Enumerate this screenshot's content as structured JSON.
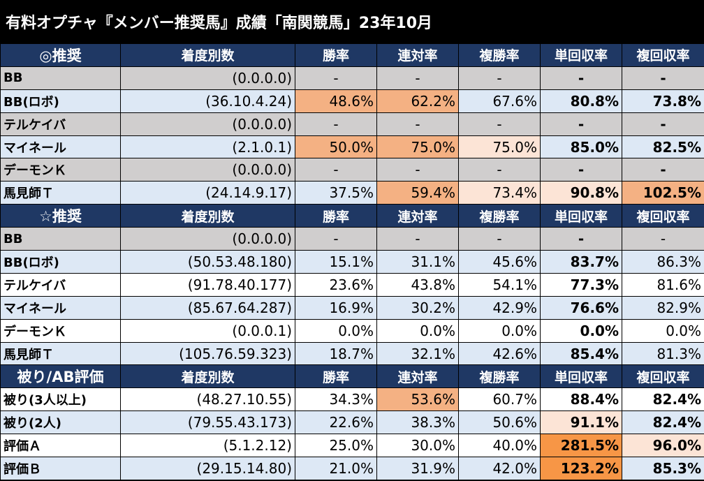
{
  "title": "有料オプチャ『メンバー推奨馬』成績「南関競馬」23年10月",
  "sections": [
    {
      "header": [
        "◎推奨",
        "着度別数",
        "勝率",
        "連対率",
        "複勝率",
        "単回収率",
        "複回収率"
      ],
      "rows": [
        {
          "name": "BB",
          "record": "(0.0.0.0)",
          "values": [
            "-",
            "-",
            "-",
            "-",
            "-"
          ],
          "style": "gray"
        },
        {
          "name": "BB(ロボ)",
          "record": "(36.10.4.24)",
          "values": [
            "48.6%",
            "62.2%",
            "67.6%",
            "80.8%",
            "73.8%"
          ],
          "style": "blue"
        },
        {
          "name": "テルケイバ",
          "record": "(0.0.0.0)",
          "values": [
            "-",
            "-",
            "-",
            "-",
            "-"
          ],
          "style": "gray"
        },
        {
          "name": "マイネール",
          "record": "(2.1.0.1)",
          "values": [
            "50.0%",
            "75.0%",
            "75.0%",
            "85.0%",
            "82.5%"
          ],
          "style": "blue"
        },
        {
          "name": "デーモンＫ",
          "record": "(0.0.0.0)",
          "values": [
            "-",
            "-",
            "-",
            "-",
            "-"
          ],
          "style": "gray"
        },
        {
          "name": "馬見師Ｔ",
          "record": "(24.14.9.17)",
          "values": [
            "37.5%",
            "59.4%",
            "73.4%",
            "90.8%",
            "102.5%"
          ],
          "style": "blue"
        }
      ]
    },
    {
      "header": [
        "☆推奨",
        "着度別数",
        "勝率",
        "連対率",
        "複勝率",
        "単回収率",
        "複回収率"
      ],
      "rows": [
        {
          "name": "BB",
          "record": "(0.0.0.0)",
          "values": [
            "-",
            "-",
            "-",
            "-",
            "-"
          ],
          "style": "gray"
        },
        {
          "name": "BB(ロボ)",
          "record": "(50.53.48.180)",
          "values": [
            "15.1%",
            "31.1%",
            "45.6%",
            "83.7%",
            "86.3%"
          ],
          "style": "blue"
        },
        {
          "name": "テルケイバ",
          "record": "(91.78.40.177)",
          "values": [
            "23.6%",
            "43.8%",
            "54.1%",
            "77.3%",
            "81.6%"
          ],
          "style": "white"
        },
        {
          "name": "マイネール",
          "record": "(85.67.64.287)",
          "values": [
            "16.9%",
            "30.2%",
            "42.9%",
            "76.6%",
            "82.9%"
          ],
          "style": "blue"
        },
        {
          "name": "デーモンＫ",
          "record": "(0.0.0.1)",
          "values": [
            "0.0%",
            "0.0%",
            "0.0%",
            "0.0%",
            "0.0%"
          ],
          "style": "white"
        },
        {
          "name": "馬見師Ｔ",
          "record": "(105.76.59.323)",
          "values": [
            "18.7%",
            "32.1%",
            "42.6%",
            "85.4%",
            "81.3%"
          ],
          "style": "blue"
        }
      ]
    },
    {
      "header": [
        "被り/AB評価",
        "着度別数",
        "勝率",
        "連対率",
        "複勝率",
        "単回収率",
        "複回収率"
      ],
      "rows": [
        {
          "name": "被り(3人以上)",
          "record": "(48.27.10.55)",
          "values": [
            "34.3%",
            "53.6%",
            "60.7%",
            "88.4%",
            "82.4%"
          ],
          "style": "white"
        },
        {
          "name": "被り(2人)",
          "record": "(79.55.43.173)",
          "values": [
            "22.6%",
            "38.3%",
            "50.6%",
            "91.1%",
            "82.4%"
          ],
          "style": "blue"
        },
        {
          "name": "評価Ａ",
          "record": "(5.1.2.12)",
          "values": [
            "25.0%",
            "30.0%",
            "40.0%",
            "281.5%",
            "96.0%"
          ],
          "style": "white"
        },
        {
          "name": "評価Ｂ",
          "record": "(29.15.14.80)",
          "values": [
            "21.0%",
            "31.9%",
            "42.0%",
            "123.2%",
            "85.3%"
          ],
          "style": "blue"
        }
      ]
    }
  ],
  "highlights": {
    "colors": {
      "h1": "#f4b183",
      "h2": "#fce4d6",
      "h3": "#f79646"
    },
    "cells": {
      "0-1-0": "h1",
      "0-1-1": "h1",
      "0-3-0": "h1",
      "0-3-1": "h1",
      "0-3-2": "h2",
      "0-5-1": "h1",
      "0-5-2": "h2",
      "0-5-3": "h2",
      "0-5-4": "h1",
      "2-0-1": "h1",
      "2-1-3": "h2",
      "2-2-3": "h3",
      "2-2-4": "h2",
      "2-3-3": "h3"
    }
  }
}
